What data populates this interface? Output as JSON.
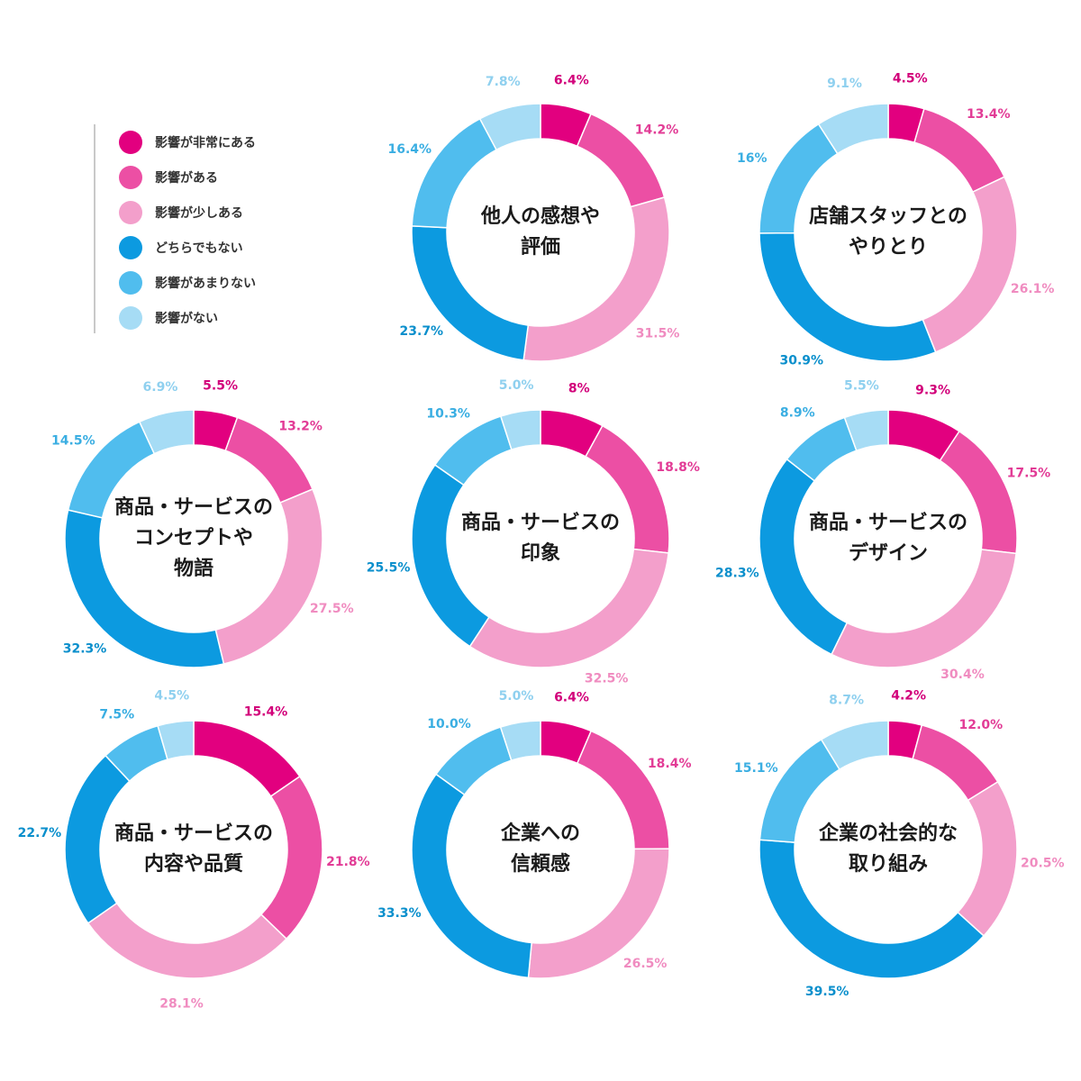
{
  "legend": {
    "items": [
      {
        "label": "影響が非常にある",
        "color": "#e2007f"
      },
      {
        "label": "影響がある",
        "color": "#ec4fa4"
      },
      {
        "label": "影響が少しある",
        "color": "#f39fcb"
      },
      {
        "label": "どちらでもない",
        "color": "#0c9ae0"
      },
      {
        "label": "影響があまりない",
        "color": "#50bdee"
      },
      {
        "label": "影響がない",
        "color": "#a6dcf5"
      }
    ]
  },
  "label_colors": [
    "#d2007a",
    "#e23c96",
    "#f08cc0",
    "#0a8fcc",
    "#3aaee2",
    "#8fd0ef"
  ],
  "chart_data": [
    {
      "type": "pie",
      "title": "他人の感想や評価",
      "categories": [
        "影響が非常にある",
        "影響がある",
        "影響が少しある",
        "どちらでもない",
        "影響があまりない",
        "影響がない"
      ],
      "values": [
        6.4,
        14.2,
        31.5,
        23.7,
        16.4,
        7.8
      ],
      "value_labels": [
        "6.4%",
        "14.2%",
        "31.5%",
        "23.7%",
        "16.4%",
        "7.8%"
      ]
    },
    {
      "type": "pie",
      "title": "店舗スタッフとのやりとり",
      "categories": [
        "影響が非常にある",
        "影響がある",
        "影響が少しある",
        "どちらでもない",
        "影響があまりない",
        "影響がない"
      ],
      "values": [
        4.5,
        13.4,
        26.1,
        30.9,
        16,
        9.1
      ],
      "value_labels": [
        "4.5%",
        "13.4%",
        "26.1%",
        "30.9%",
        "16%",
        "9.1%"
      ]
    },
    {
      "type": "pie",
      "title": "商品・サービスのコンセプトや物語",
      "categories": [
        "影響が非常にある",
        "影響がある",
        "影響が少しある",
        "どちらでもない",
        "影響があまりない",
        "影響がない"
      ],
      "values": [
        5.5,
        13.2,
        27.5,
        32.3,
        14.5,
        6.9
      ],
      "value_labels": [
        "5.5%",
        "13.2%",
        "27.5%",
        "32.3%",
        "14.5%",
        "6.9%"
      ]
    },
    {
      "type": "pie",
      "title": "商品・サービスの印象",
      "categories": [
        "影響が非常にある",
        "影響がある",
        "影響が少しある",
        "どちらでもない",
        "影響があまりない",
        "影響がない"
      ],
      "values": [
        8,
        18.8,
        32.5,
        25.5,
        10.3,
        5.0
      ],
      "value_labels": [
        "8%",
        "18.8%",
        "32.5%",
        "25.5%",
        "10.3%",
        "5.0%"
      ]
    },
    {
      "type": "pie",
      "title": "商品・サービスのデザイン",
      "categories": [
        "影響が非常にある",
        "影響がある",
        "影響が少しある",
        "どちらでもない",
        "影響があまりない",
        "影響がない"
      ],
      "values": [
        9.3,
        17.5,
        30.4,
        28.3,
        8.9,
        5.5
      ],
      "value_labels": [
        "9.3%",
        "17.5%",
        "30.4%",
        "28.3%",
        "8.9%",
        "5.5%"
      ]
    },
    {
      "type": "pie",
      "title": "商品・サービスの内容や品質",
      "categories": [
        "影響が非常にある",
        "影響がある",
        "影響が少しある",
        "どちらでもない",
        "影響があまりない",
        "影響がない"
      ],
      "values": [
        15.4,
        21.8,
        28.1,
        22.7,
        7.5,
        4.5
      ],
      "value_labels": [
        "15.4%",
        "21.8%",
        "28.1%",
        "22.7%",
        "7.5%",
        "4.5%"
      ]
    },
    {
      "type": "pie",
      "title": "企業への信頼感",
      "categories": [
        "影響が非常にある",
        "影響がある",
        "影響が少しある",
        "どちらでもない",
        "影響があまりない",
        "影響がない"
      ],
      "values": [
        6.4,
        18.4,
        26.5,
        33.3,
        10.0,
        5.0
      ],
      "value_labels": [
        "6.4%",
        "18.4%",
        "26.5%",
        "33.3%",
        "10.0%",
        "5.0%"
      ]
    },
    {
      "type": "pie",
      "title": "企業の社会的な取り組み",
      "categories": [
        "影響が非常にある",
        "影響がある",
        "影響が少しある",
        "どちらでもない",
        "影響があまりない",
        "影響がない"
      ],
      "values": [
        4.2,
        12.0,
        20.5,
        39.5,
        15.1,
        8.7
      ],
      "value_labels": [
        "4.2%",
        "12.0%",
        "20.5%",
        "39.5%",
        "15.1%",
        "8.7%"
      ]
    }
  ]
}
